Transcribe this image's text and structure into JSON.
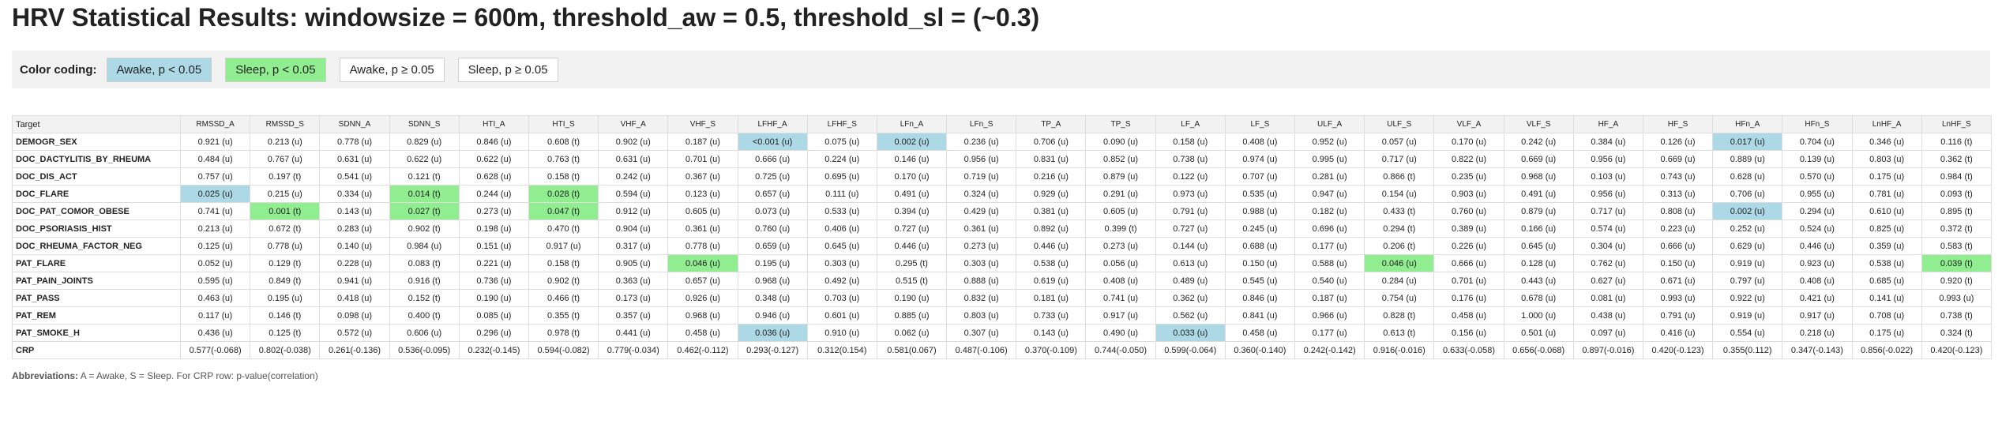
{
  "title": "HRV Statistical Results: windowsize = 600m, threshold_aw = 0.5, threshold_sl = (~0.3)",
  "legend": {
    "label": "Color coding:",
    "items": [
      {
        "text": "Awake, p < 0.05",
        "kind": "awake",
        "color": "#add8e6"
      },
      {
        "text": "Sleep, p < 0.05",
        "kind": "sleep",
        "color": "#90ee90"
      },
      {
        "text": "Awake, p ≥ 0.05",
        "kind": "plain",
        "color": "#ffffff"
      },
      {
        "text": "Sleep, p ≥ 0.05",
        "kind": "plain",
        "color": "#ffffff"
      }
    ]
  },
  "table": {
    "columns": [
      "Target",
      "RMSSD_A",
      "RMSSD_S",
      "SDNN_A",
      "SDNN_S",
      "HTI_A",
      "HTI_S",
      "VHF_A",
      "VHF_S",
      "LFHF_A",
      "LFHF_S",
      "LFn_A",
      "LFn_S",
      "TP_A",
      "TP_S",
      "LF_A",
      "LF_S",
      "ULF_A",
      "ULF_S",
      "VLF_A",
      "VLF_S",
      "HF_A",
      "HF_S",
      "HFn_A",
      "HFn_S",
      "LnHF_A",
      "LnHF_S"
    ],
    "rows": [
      {
        "target": "DEMOGR_SEX",
        "cells": [
          "0.921 (u)",
          "0.213 (u)",
          "0.778 (u)",
          "0.829 (u)",
          "0.846 (u)",
          "0.608 (t)",
          "0.902 (u)",
          "0.187 (u)",
          "<0.001 (u)",
          "0.075 (u)",
          "0.002 (u)",
          "0.236 (u)",
          "0.706 (u)",
          "0.090 (u)",
          "0.158 (u)",
          "0.408 (u)",
          "0.952 (u)",
          "0.057 (u)",
          "0.170 (u)",
          "0.242 (u)",
          "0.384 (u)",
          "0.126 (u)",
          "0.017 (u)",
          "0.704 (u)",
          "0.346 (u)",
          "0.116 (t)"
        ],
        "marks": {
          "8": "awake",
          "10": "awake",
          "22": "awake"
        }
      },
      {
        "target": "DOC_DACTYLITIS_BY_RHEUMA",
        "cells": [
          "0.484 (u)",
          "0.767 (u)",
          "0.631 (u)",
          "0.622 (u)",
          "0.622 (u)",
          "0.763 (t)",
          "0.631 (u)",
          "0.701 (u)",
          "0.666 (u)",
          "0.224 (u)",
          "0.146 (u)",
          "0.956 (u)",
          "0.831 (u)",
          "0.852 (u)",
          "0.738 (u)",
          "0.974 (u)",
          "0.995 (u)",
          "0.717 (u)",
          "0.822 (u)",
          "0.669 (u)",
          "0.956 (u)",
          "0.669 (u)",
          "0.889 (u)",
          "0.139 (u)",
          "0.803 (u)",
          "0.362 (t)"
        ],
        "marks": {}
      },
      {
        "target": "DOC_DIS_ACT",
        "cells": [
          "0.757 (u)",
          "0.197 (t)",
          "0.541 (u)",
          "0.121 (t)",
          "0.628 (u)",
          "0.158 (t)",
          "0.242 (u)",
          "0.367 (u)",
          "0.725 (u)",
          "0.695 (u)",
          "0.170 (u)",
          "0.719 (u)",
          "0.216 (u)",
          "0.879 (u)",
          "0.122 (u)",
          "0.707 (u)",
          "0.281 (u)",
          "0.866 (t)",
          "0.235 (u)",
          "0.968 (u)",
          "0.103 (u)",
          "0.743 (u)",
          "0.628 (u)",
          "0.570 (u)",
          "0.175 (u)",
          "0.984 (t)"
        ],
        "marks": {}
      },
      {
        "target": "DOC_FLARE",
        "cells": [
          "0.025 (u)",
          "0.215 (u)",
          "0.334 (u)",
          "0.014 (t)",
          "0.244 (u)",
          "0.028 (t)",
          "0.594 (u)",
          "0.123 (u)",
          "0.657 (u)",
          "0.111 (u)",
          "0.491 (u)",
          "0.324 (u)",
          "0.929 (u)",
          "0.291 (u)",
          "0.973 (u)",
          "0.535 (u)",
          "0.947 (u)",
          "0.154 (u)",
          "0.903 (u)",
          "0.491 (u)",
          "0.956 (u)",
          "0.313 (u)",
          "0.706 (u)",
          "0.955 (u)",
          "0.781 (u)",
          "0.093 (t)"
        ],
        "marks": {
          "0": "awake",
          "3": "sleep",
          "5": "sleep"
        }
      },
      {
        "target": "DOC_PAT_COMOR_OBESE",
        "cells": [
          "0.741 (u)",
          "0.001 (t)",
          "0.143 (u)",
          "0.027 (t)",
          "0.273 (u)",
          "0.047 (t)",
          "0.912 (u)",
          "0.605 (u)",
          "0.073 (u)",
          "0.533 (u)",
          "0.394 (u)",
          "0.429 (u)",
          "0.381 (u)",
          "0.605 (u)",
          "0.791 (u)",
          "0.988 (u)",
          "0.182 (u)",
          "0.433 (t)",
          "0.760 (u)",
          "0.879 (u)",
          "0.717 (u)",
          "0.808 (u)",
          "0.002 (u)",
          "0.294 (u)",
          "0.610 (u)",
          "0.895 (t)"
        ],
        "marks": {
          "1": "sleep",
          "3": "sleep",
          "5": "sleep",
          "22": "awake"
        }
      },
      {
        "target": "DOC_PSORIASIS_HIST",
        "cells": [
          "0.213 (u)",
          "0.672 (t)",
          "0.283 (u)",
          "0.902 (t)",
          "0.198 (u)",
          "0.470 (t)",
          "0.904 (u)",
          "0.361 (u)",
          "0.760 (u)",
          "0.406 (u)",
          "0.727 (u)",
          "0.361 (u)",
          "0.892 (u)",
          "0.399 (t)",
          "0.727 (u)",
          "0.245 (u)",
          "0.696 (u)",
          "0.294 (t)",
          "0.389 (u)",
          "0.166 (u)",
          "0.574 (u)",
          "0.223 (u)",
          "0.252 (u)",
          "0.524 (u)",
          "0.825 (u)",
          "0.372 (t)"
        ],
        "marks": {}
      },
      {
        "target": "DOC_RHEUMA_FACTOR_NEG",
        "cells": [
          "0.125 (u)",
          "0.778 (u)",
          "0.140 (u)",
          "0.984 (u)",
          "0.151 (u)",
          "0.917 (u)",
          "0.317 (u)",
          "0.778 (u)",
          "0.659 (u)",
          "0.645 (u)",
          "0.446 (u)",
          "0.273 (u)",
          "0.446 (u)",
          "0.273 (u)",
          "0.144 (u)",
          "0.688 (u)",
          "0.177 (u)",
          "0.206 (t)",
          "0.226 (u)",
          "0.645 (u)",
          "0.304 (u)",
          "0.666 (u)",
          "0.629 (u)",
          "0.446 (u)",
          "0.359 (u)",
          "0.583 (t)"
        ],
        "marks": {}
      },
      {
        "target": "PAT_FLARE",
        "cells": [
          "0.052 (u)",
          "0.129 (t)",
          "0.228 (u)",
          "0.083 (t)",
          "0.221 (u)",
          "0.158 (t)",
          "0.905 (u)",
          "0.046 (u)",
          "0.195 (u)",
          "0.303 (u)",
          "0.295 (t)",
          "0.303 (u)",
          "0.538 (u)",
          "0.056 (u)",
          "0.613 (u)",
          "0.150 (u)",
          "0.588 (u)",
          "0.046 (u)",
          "0.666 (u)",
          "0.128 (u)",
          "0.762 (u)",
          "0.150 (u)",
          "0.919 (u)",
          "0.923 (u)",
          "0.538 (u)",
          "0.039 (t)"
        ],
        "marks": {
          "7": "sleep",
          "17": "sleep",
          "25": "sleep"
        }
      },
      {
        "target": "PAT_PAIN_JOINTS",
        "cells": [
          "0.595 (u)",
          "0.849 (t)",
          "0.941 (u)",
          "0.916 (t)",
          "0.736 (u)",
          "0.902 (t)",
          "0.363 (u)",
          "0.657 (u)",
          "0.968 (u)",
          "0.492 (u)",
          "0.515 (t)",
          "0.888 (u)",
          "0.619 (u)",
          "0.408 (u)",
          "0.489 (u)",
          "0.545 (u)",
          "0.540 (u)",
          "0.284 (u)",
          "0.701 (u)",
          "0.443 (u)",
          "0.627 (u)",
          "0.671 (u)",
          "0.797 (u)",
          "0.408 (u)",
          "0.685 (u)",
          "0.920 (t)"
        ],
        "marks": {}
      },
      {
        "target": "PAT_PASS",
        "cells": [
          "0.463 (u)",
          "0.195 (u)",
          "0.418 (u)",
          "0.152 (t)",
          "0.190 (u)",
          "0.466 (t)",
          "0.173 (u)",
          "0.926 (u)",
          "0.348 (u)",
          "0.703 (u)",
          "0.190 (u)",
          "0.832 (u)",
          "0.181 (u)",
          "0.741 (u)",
          "0.362 (u)",
          "0.846 (u)",
          "0.187 (u)",
          "0.754 (u)",
          "0.176 (u)",
          "0.678 (u)",
          "0.081 (u)",
          "0.993 (u)",
          "0.922 (u)",
          "0.421 (u)",
          "0.141 (u)",
          "0.993 (u)"
        ],
        "marks": {}
      },
      {
        "target": "PAT_REM",
        "cells": [
          "0.117 (u)",
          "0.146 (t)",
          "0.098 (u)",
          "0.400 (t)",
          "0.085 (u)",
          "0.355 (t)",
          "0.357 (u)",
          "0.968 (u)",
          "0.946 (u)",
          "0.601 (u)",
          "0.885 (u)",
          "0.803 (u)",
          "0.733 (u)",
          "0.917 (u)",
          "0.562 (u)",
          "0.841 (u)",
          "0.966 (u)",
          "0.828 (t)",
          "0.458 (u)",
          "1.000 (u)",
          "0.438 (u)",
          "0.791 (u)",
          "0.919 (u)",
          "0.917 (u)",
          "0.708 (u)",
          "0.738 (t)"
        ],
        "marks": {}
      },
      {
        "target": "PAT_SMOKE_H",
        "cells": [
          "0.436 (u)",
          "0.125 (t)",
          "0.572 (u)",
          "0.606 (u)",
          "0.296 (u)",
          "0.978 (t)",
          "0.441 (u)",
          "0.458 (u)",
          "0.036 (u)",
          "0.910 (u)",
          "0.062 (u)",
          "0.307 (u)",
          "0.143 (u)",
          "0.490 (u)",
          "0.033 (u)",
          "0.458 (u)",
          "0.177 (u)",
          "0.613 (t)",
          "0.156 (u)",
          "0.501 (u)",
          "0.097 (u)",
          "0.416 (u)",
          "0.554 (u)",
          "0.218 (u)",
          "0.175 (u)",
          "0.324 (t)"
        ],
        "marks": {
          "8": "awake",
          "14": "awake"
        }
      },
      {
        "target": "CRP",
        "cells": [
          "0.577(-0.068)",
          "0.802(-0.038)",
          "0.261(-0.136)",
          "0.536(-0.095)",
          "0.232(-0.145)",
          "0.594(-0.082)",
          "0.779(-0.034)",
          "0.462(-0.112)",
          "0.293(-0.127)",
          "0.312(0.154)",
          "0.581(0.067)",
          "0.487(-0.106)",
          "0.370(-0.109)",
          "0.744(-0.050)",
          "0.599(-0.064)",
          "0.360(-0.140)",
          "0.242(-0.142)",
          "0.916(-0.016)",
          "0.633(-0.058)",
          "0.656(-0.068)",
          "0.897(-0.016)",
          "0.420(-0.123)",
          "0.355(0.112)",
          "0.347(-0.143)",
          "0.856(-0.022)",
          "0.420(-0.123)"
        ],
        "marks": {}
      }
    ]
  },
  "footnote": {
    "label": "Abbreviations:",
    "text": "A = Awake, S = Sleep. For CRP row: p-value(correlation)"
  }
}
